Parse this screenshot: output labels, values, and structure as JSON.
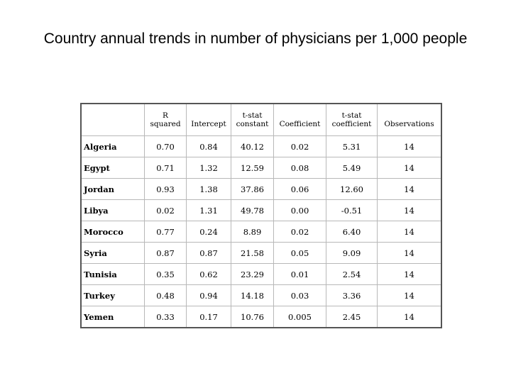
{
  "slide": {
    "title": "Country annual trends in number of physicians per 1,000 people"
  },
  "table": {
    "header_top": [
      "",
      "R",
      "",
      "t-stat",
      "",
      "t-stat",
      ""
    ],
    "header_bottom": [
      "",
      "squared",
      "Intercept",
      "constant",
      "Coefficient",
      "coefficient",
      "Observations"
    ],
    "rows": [
      {
        "country": "Algeria",
        "r_squared": "0.70",
        "intercept": "0.84",
        "t_stat_constant": "40.12",
        "coefficient": "0.02",
        "t_stat_coefficient": "5.31",
        "observations": "14"
      },
      {
        "country": "Egypt",
        "r_squared": "0.71",
        "intercept": "1.32",
        "t_stat_constant": "12.59",
        "coefficient": "0.08",
        "t_stat_coefficient": "5.49",
        "observations": "14"
      },
      {
        "country": "Jordan",
        "r_squared": "0.93",
        "intercept": "1.38",
        "t_stat_constant": "37.86",
        "coefficient": "0.06",
        "t_stat_coefficient": "12.60",
        "observations": "14"
      },
      {
        "country": "Libya",
        "r_squared": "0.02",
        "intercept": "1.31",
        "t_stat_constant": "49.78",
        "coefficient": "0.00",
        "t_stat_coefficient": "-0.51",
        "observations": "14"
      },
      {
        "country": "Morocco",
        "r_squared": "0.77",
        "intercept": "0.24",
        "t_stat_constant": "8.89",
        "coefficient": "0.02",
        "t_stat_coefficient": "6.40",
        "observations": "14"
      },
      {
        "country": "Syria",
        "r_squared": "0.87",
        "intercept": "0.87",
        "t_stat_constant": "21.58",
        "coefficient": "0.05",
        "t_stat_coefficient": "9.09",
        "observations": "14"
      },
      {
        "country": "Tunisia",
        "r_squared": "0.35",
        "intercept": "0.62",
        "t_stat_constant": "23.29",
        "coefficient": "0.01",
        "t_stat_coefficient": "2.54",
        "observations": "14"
      },
      {
        "country": "Turkey",
        "r_squared": "0.48",
        "intercept": "0.94",
        "t_stat_constant": "14.18",
        "coefficient": "0.03",
        "t_stat_coefficient": "3.36",
        "observations": "14"
      },
      {
        "country": "Yemen",
        "r_squared": "0.33",
        "intercept": "0.17",
        "t_stat_constant": "10.76",
        "coefficient": "0.005",
        "t_stat_coefficient": "2.45",
        "observations": "14"
      }
    ]
  }
}
